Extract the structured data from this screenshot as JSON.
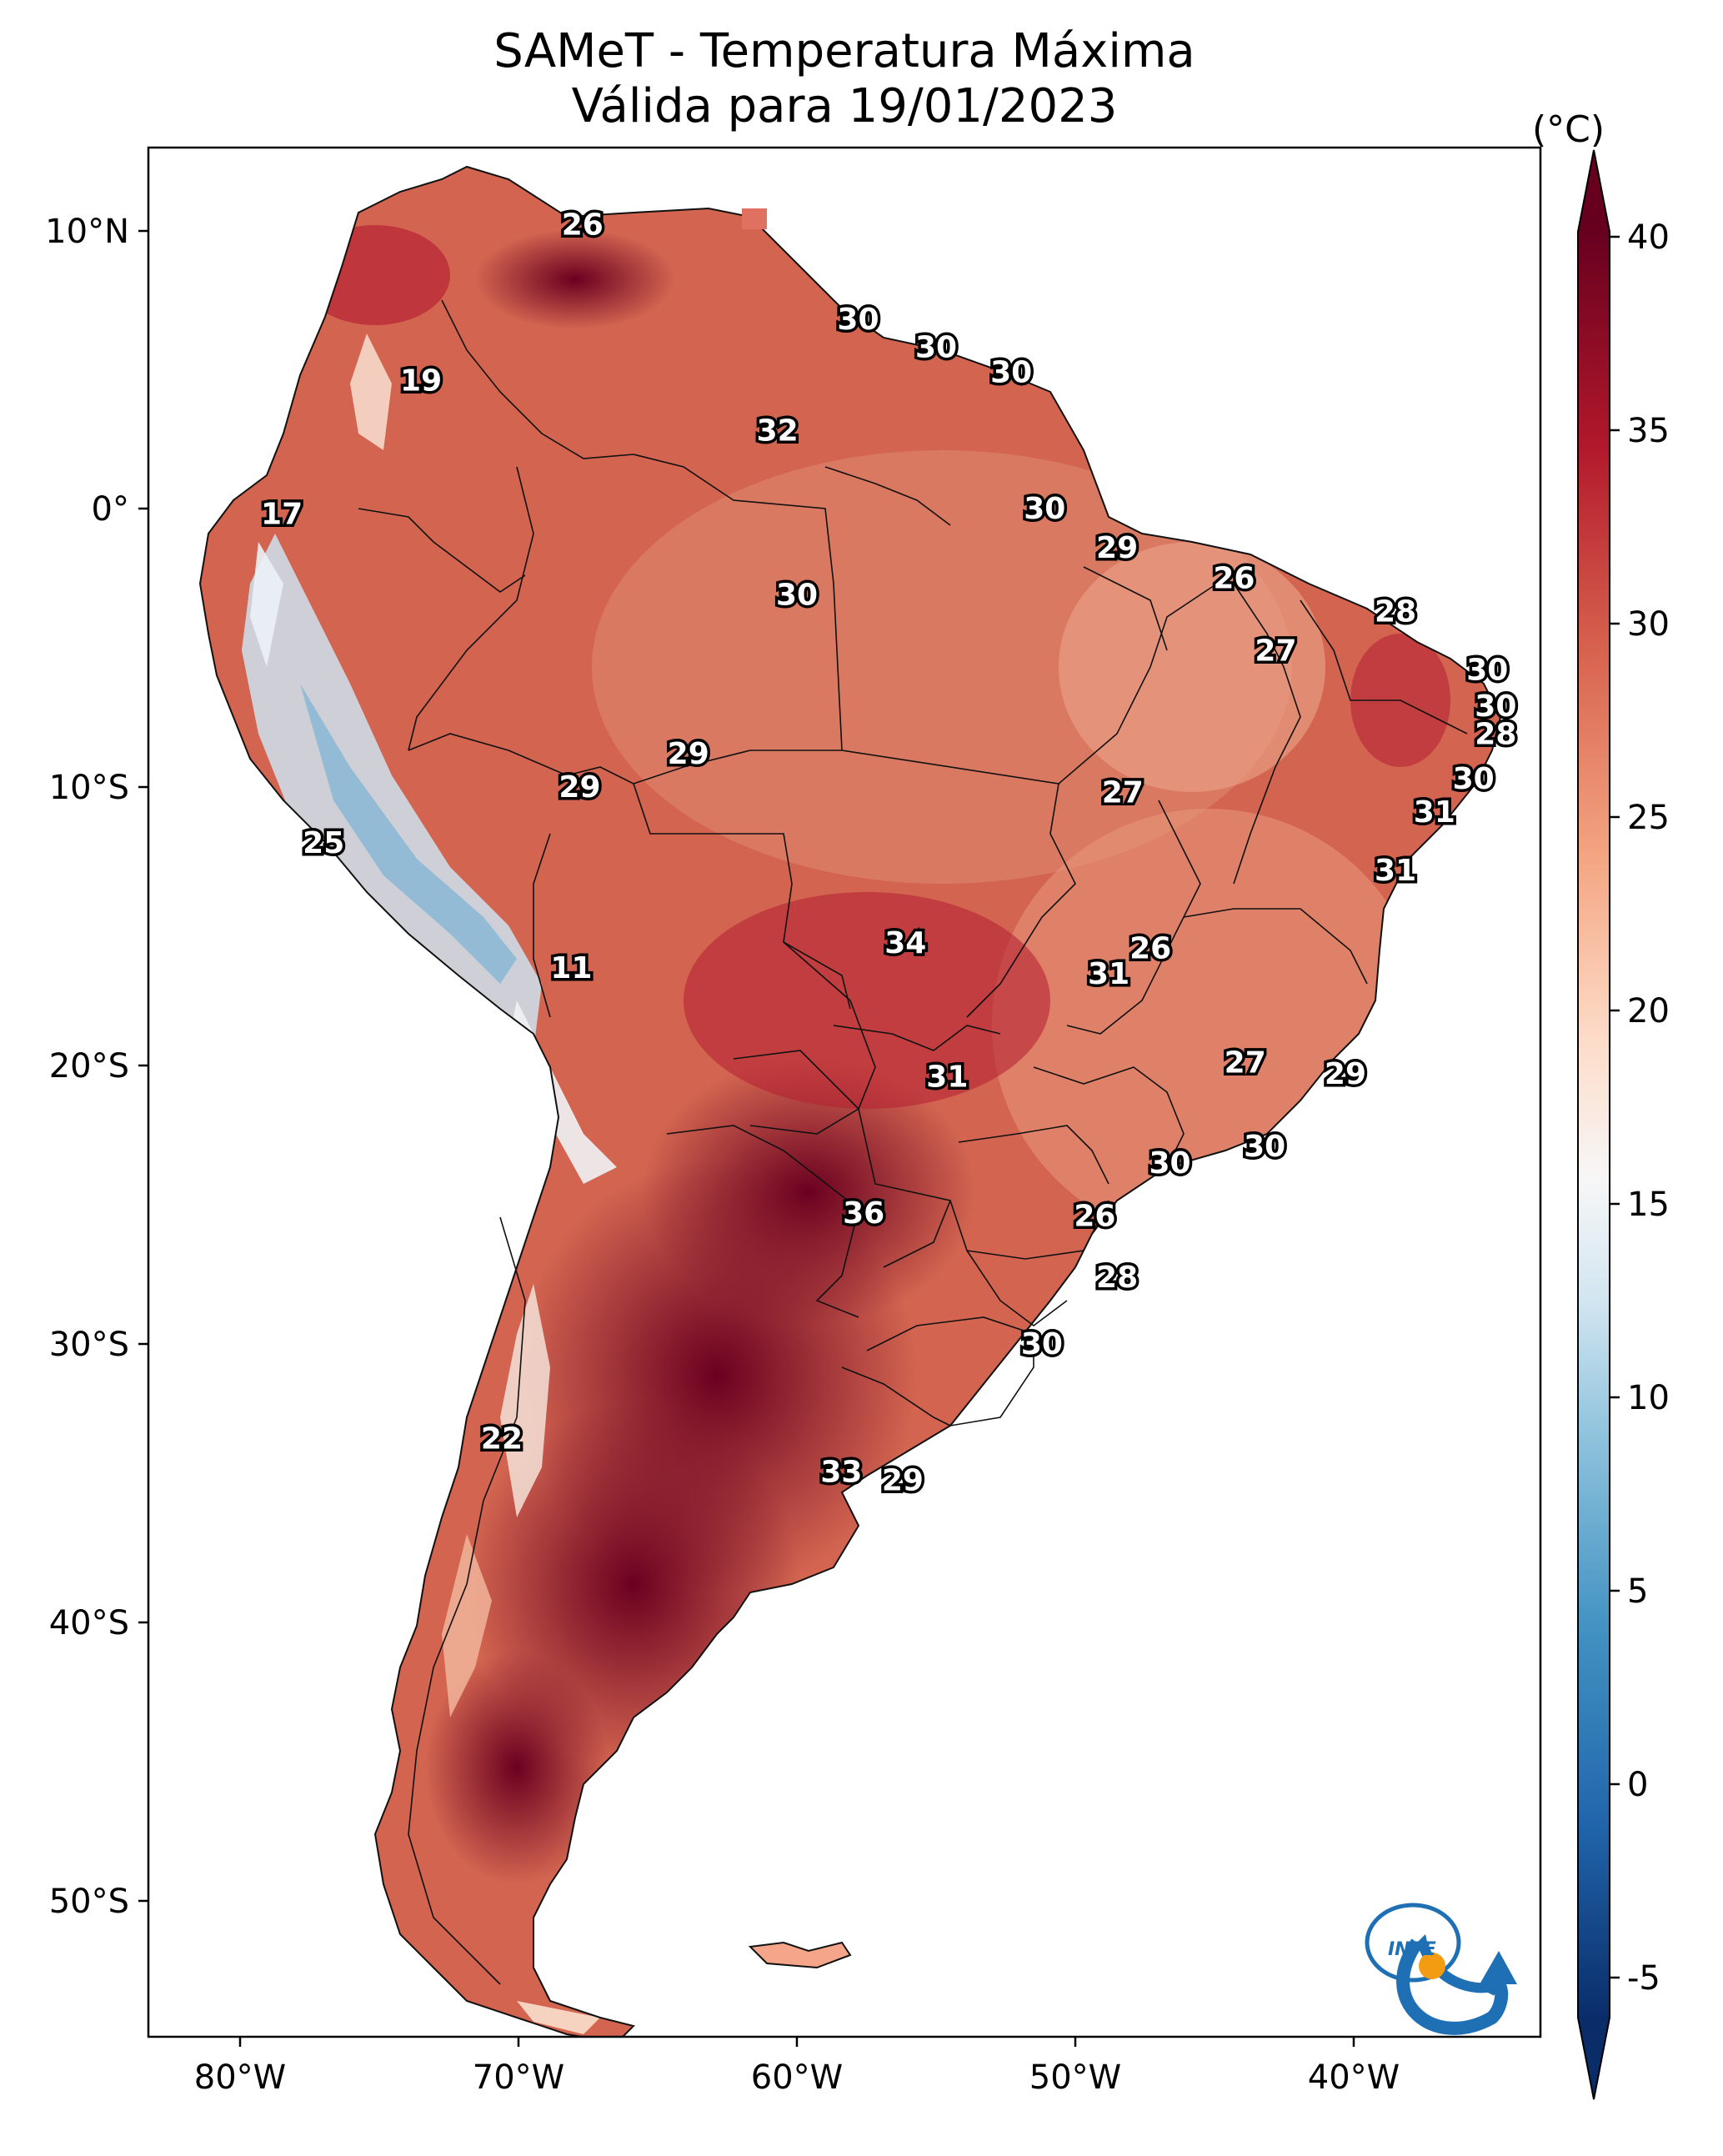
{
  "title_line1": "SAMeT - Temperatura Máxima",
  "title_line2": "Válida para 19/01/2023",
  "colorbar": {
    "unit": "(°C)",
    "ticks": [
      "40",
      "35",
      "30",
      "25",
      "20",
      "15",
      "10",
      "5",
      "0",
      "-5"
    ],
    "range": [
      -5,
      40
    ],
    "colors": [
      "#08306b",
      "#2166ac",
      "#4393c3",
      "#92c5de",
      "#d1e5f0",
      "#f7f7f7",
      "#fddbc7",
      "#f4a582",
      "#d6604d",
      "#b2182b",
      "#67001f"
    ]
  },
  "axes": {
    "lat_labels": [
      "10°N",
      "0°",
      "10°S",
      "20°S",
      "30°S",
      "40°S",
      "50°S"
    ],
    "lon_labels": [
      "80°W",
      "70°W",
      "60°W",
      "50°W",
      "40°W"
    ]
  },
  "station_values": [
    {
      "lon": -67.7,
      "lat": 10.2,
      "value": "26"
    },
    {
      "lon": -73.5,
      "lat": 4.6,
      "value": "19"
    },
    {
      "lon": -78.5,
      "lat": -0.2,
      "value": "17"
    },
    {
      "lon": -57.8,
      "lat": 6.8,
      "value": "30"
    },
    {
      "lon": -55.0,
      "lat": 5.8,
      "value": "30"
    },
    {
      "lon": -52.3,
      "lat": 4.9,
      "value": "30"
    },
    {
      "lon": -60.7,
      "lat": 2.8,
      "value": "32"
    },
    {
      "lon": -51.1,
      "lat": 0.0,
      "value": "30"
    },
    {
      "lon": -48.5,
      "lat": -1.4,
      "value": "29"
    },
    {
      "lon": -44.3,
      "lat": -2.5,
      "value": "26"
    },
    {
      "lon": -38.5,
      "lat": -3.7,
      "value": "28"
    },
    {
      "lon": -42.8,
      "lat": -5.1,
      "value": "27"
    },
    {
      "lon": -35.2,
      "lat": -5.8,
      "value": "30"
    },
    {
      "lon": -34.9,
      "lat": -7.1,
      "value": "30"
    },
    {
      "lon": -34.9,
      "lat": -8.1,
      "value": "28"
    },
    {
      "lon": -60.0,
      "lat": -3.1,
      "value": "30"
    },
    {
      "lon": -63.9,
      "lat": -8.8,
      "value": "29"
    },
    {
      "lon": -67.8,
      "lat": -10.0,
      "value": "29"
    },
    {
      "lon": -48.3,
      "lat": -10.2,
      "value": "27"
    },
    {
      "lon": -35.7,
      "lat": -9.7,
      "value": "30"
    },
    {
      "lon": -37.1,
      "lat": -10.9,
      "value": "31"
    },
    {
      "lon": -38.5,
      "lat": -13.0,
      "value": "31"
    },
    {
      "lon": -77.0,
      "lat": -12.0,
      "value": "25"
    },
    {
      "lon": -56.1,
      "lat": -15.6,
      "value": "34"
    },
    {
      "lon": -47.3,
      "lat": -15.8,
      "value": "26"
    },
    {
      "lon": -48.8,
      "lat": -16.7,
      "value": "31"
    },
    {
      "lon": -68.1,
      "lat": -16.5,
      "value": "11"
    },
    {
      "lon": -43.9,
      "lat": -19.9,
      "value": "27"
    },
    {
      "lon": -40.3,
      "lat": -20.3,
      "value": "29"
    },
    {
      "lon": -54.6,
      "lat": -20.4,
      "value": "31"
    },
    {
      "lon": -43.2,
      "lat": -22.9,
      "value": "30"
    },
    {
      "lon": -46.6,
      "lat": -23.5,
      "value": "30"
    },
    {
      "lon": -57.6,
      "lat": -25.3,
      "value": "36"
    },
    {
      "lon": -49.3,
      "lat": -25.4,
      "value": "26"
    },
    {
      "lon": -48.5,
      "lat": -27.6,
      "value": "28"
    },
    {
      "lon": -51.2,
      "lat": -30.0,
      "value": "30"
    },
    {
      "lon": -70.6,
      "lat": -33.4,
      "value": "22"
    },
    {
      "lon": -58.4,
      "lat": -34.6,
      "value": "33"
    },
    {
      "lon": -56.2,
      "lat": -34.9,
      "value": "29"
    }
  ],
  "logo": {
    "text": "INPE",
    "type": "institution-logo"
  }
}
